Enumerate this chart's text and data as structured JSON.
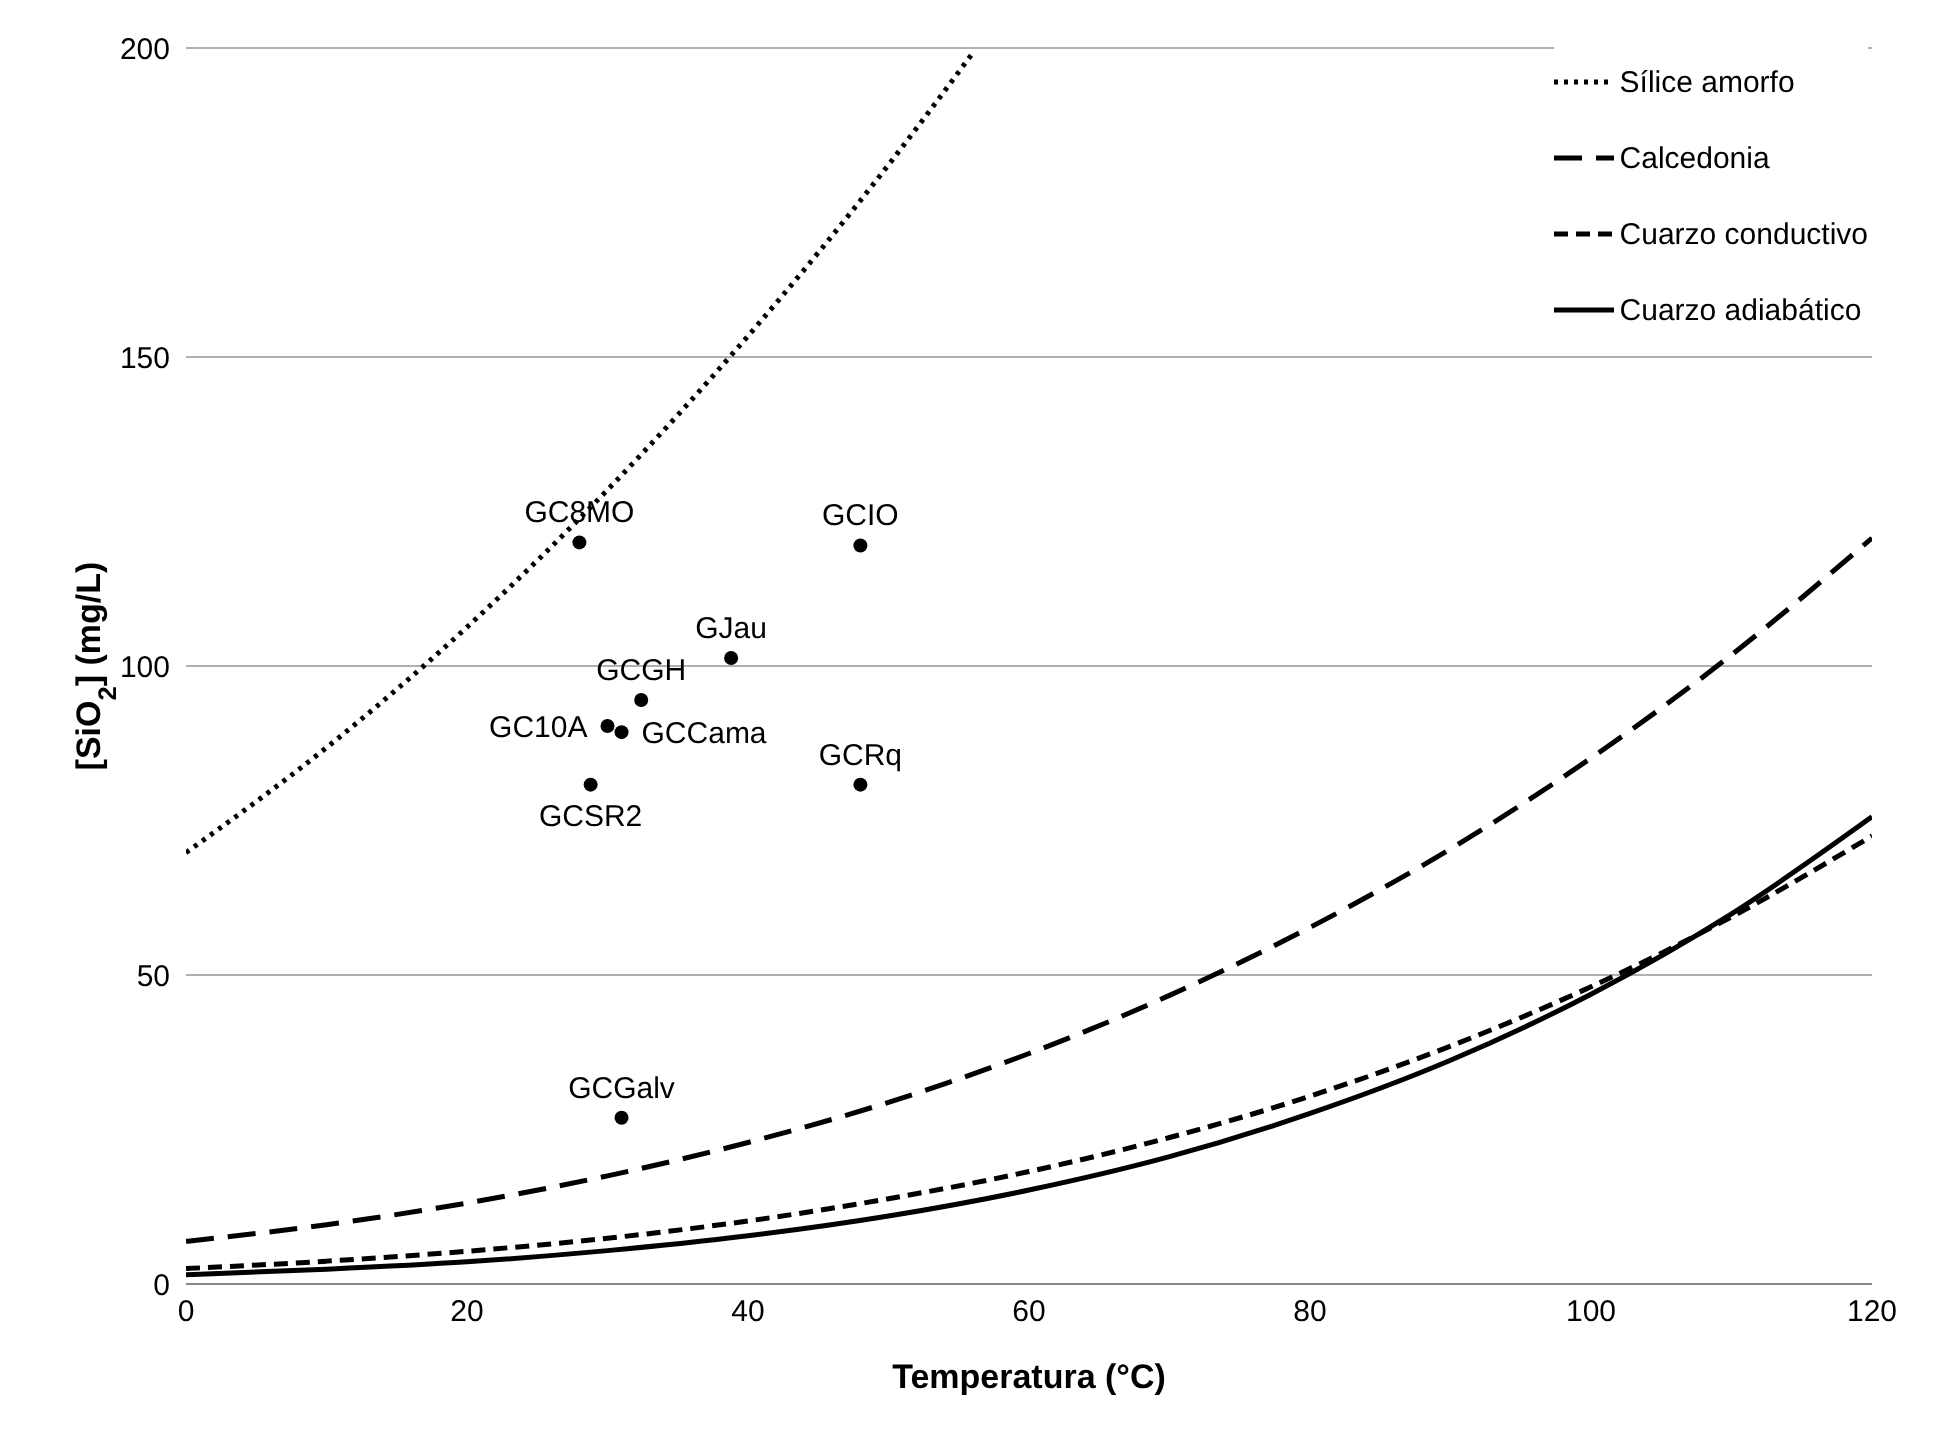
{
  "chart_data": {
    "type": "line",
    "xlabel": "Temperatura (°C)",
    "ylabel": "[SiO$_{2}$] (mg/L)",
    "xlim": [
      0,
      120
    ],
    "xticks": [
      0,
      20,
      40,
      60,
      80,
      100,
      120
    ],
    "ylim": [
      0,
      200
    ],
    "yticks": [
      0,
      50,
      100,
      150,
      200
    ],
    "grid": "y",
    "legend": "top right",
    "marker": "none",
    "series": [
      {
        "name": "Sílice amorfo",
        "color": "#000000",
        "line_style": "dotted",
        "x": [
          0,
          10,
          20,
          30,
          40,
          50,
          56
        ],
        "values": [
          69.8,
          86.8,
          106.3,
          128.5,
          153.4,
          181.1,
          199.2
        ]
      },
      {
        "name": "Calcedonia",
        "color": "#000000",
        "line_style": "dashed",
        "x": [
          0,
          10,
          20,
          30,
          40,
          50,
          60,
          70,
          80,
          90,
          100,
          110,
          120
        ],
        "values": [
          6.9,
          9.6,
          13.1,
          17.5,
          22.9,
          29.4,
          37.3,
          46.7,
          57.7,
          70.4,
          85.1,
          101.8,
          120.7
        ]
      },
      {
        "name": "Cuarzo conductivo",
        "color": "#000000",
        "line_style": "dashed",
        "x": [
          0,
          10,
          20,
          30,
          40,
          50,
          60,
          70,
          80,
          90,
          100,
          110,
          120
        ],
        "values": [
          2.5,
          3.7,
          5.3,
          7.4,
          10.2,
          13.8,
          18.2,
          23.7,
          30.4,
          38.5,
          48.1,
          59.4,
          72.5
        ]
      },
      {
        "name": "Cuarzo adiabático",
        "color": "#000000",
        "line_style": "solid",
        "x": [
          0,
          10,
          20,
          30,
          40,
          50,
          60,
          70,
          80,
          90,
          100,
          110,
          120
        ],
        "values": [
          1.5,
          2.4,
          3.6,
          5.4,
          7.8,
          11.0,
          15.2,
          20.6,
          27.6,
          36.2,
          46.9,
          59.9,
          75.6
        ]
      },
      {
        "type": "scatter",
        "color": "#000000",
        "marker": "circle",
        "x": [
          28,
          48,
          38.8,
          32.4,
          30,
          31,
          48,
          28.8,
          31
        ],
        "values": [
          120,
          119.5,
          101.3,
          94.5,
          90.3,
          89.3,
          80.8,
          80.8,
          26.9
        ]
      }
    ],
    "annotations": [
      {
        "text": "GC8MO",
        "x": 28,
        "y": 120
      },
      {
        "text": "GCIO",
        "x": 48,
        "y": 119.5
      },
      {
        "text": "GJau",
        "x": 38.8,
        "y": 101.3
      },
      {
        "text": "GCGH",
        "x": 32.4,
        "y": 94.5
      },
      {
        "text": "GC10A",
        "x": 30,
        "y": 90.3
      },
      {
        "text": "GCCama",
        "x": 31,
        "y": 89.3
      },
      {
        "text": "GCRq",
        "x": 48,
        "y": 80.8
      },
      {
        "text": "GCSR2",
        "x": 28.8,
        "y": 80.8
      },
      {
        "text": "GCGalv",
        "x": 31,
        "y": 26.9
      }
    ]
  }
}
